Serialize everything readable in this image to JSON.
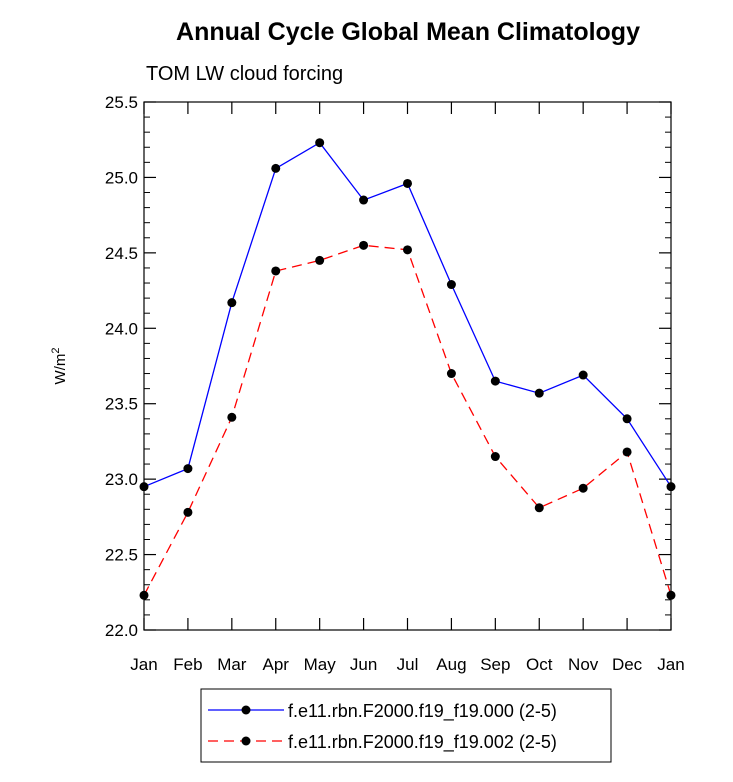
{
  "chart_data": {
    "type": "line",
    "title": "Annual Cycle Global Mean Climatology",
    "subtitle": "TOM LW cloud forcing",
    "ylabel": "W/m",
    "ylabel_superscript": "2",
    "xlabel": "",
    "categories": [
      "Jan",
      "Feb",
      "Mar",
      "Apr",
      "May",
      "Jun",
      "Jul",
      "Aug",
      "Sep",
      "Oct",
      "Nov",
      "Dec",
      "Jan"
    ],
    "ylim": [
      22.0,
      25.5
    ],
    "yticks": [
      "22.0",
      "22.5",
      "23.0",
      "23.5",
      "24.0",
      "24.5",
      "25.0",
      "25.5"
    ],
    "grid": false,
    "legend_position": "bottom",
    "series": [
      {
        "name": "f.e11.rbn.F2000.f19_f19.000 (2-5)",
        "color": "#0000ff",
        "dash": "solid",
        "values": [
          22.95,
          23.07,
          24.17,
          25.06,
          25.23,
          24.85,
          24.96,
          24.29,
          23.65,
          23.57,
          23.69,
          23.4,
          22.95
        ]
      },
      {
        "name": "f.e11.rbn.F2000.f19_f19.002 (2-5)",
        "color": "#ff0000",
        "dash": "dashed",
        "values": [
          22.23,
          22.78,
          23.41,
          24.38,
          24.45,
          24.55,
          24.52,
          23.7,
          23.15,
          22.81,
          22.94,
          23.18,
          22.23
        ]
      }
    ]
  }
}
